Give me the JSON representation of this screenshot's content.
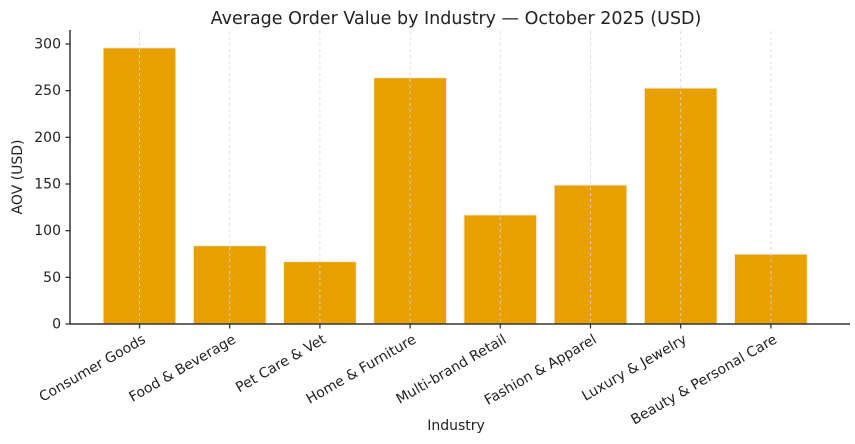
{
  "chart_data": {
    "type": "bar",
    "title": "Average Order Value by Industry — October 2025 (USD)",
    "xlabel": "Industry",
    "ylabel": "AOV (USD)",
    "categories": [
      "Consumer Goods",
      "Food & Beverage",
      "Pet Care & Vet",
      "Home & Furniture",
      "Multi-brand Retail",
      "Fashion & Apparel",
      "Luxury & Jewelry",
      "Beauty & Personal Care"
    ],
    "values": [
      296,
      84,
      67,
      264,
      117,
      149,
      253,
      75
    ],
    "yticks": [
      0,
      50,
      100,
      150,
      200,
      250,
      300
    ],
    "ylim": [
      0,
      315
    ],
    "legend": "none",
    "grid": "vertical-dashed-at-categories",
    "bar_color": "#E8A000",
    "bar_edge_color": "#F2F2F2",
    "grid_color": "#D8D8D8",
    "axis_color": "#333333",
    "text_color": "#222222",
    "background_color": "#FFFFFF",
    "x_tick_label_rotation_deg": 30
  }
}
